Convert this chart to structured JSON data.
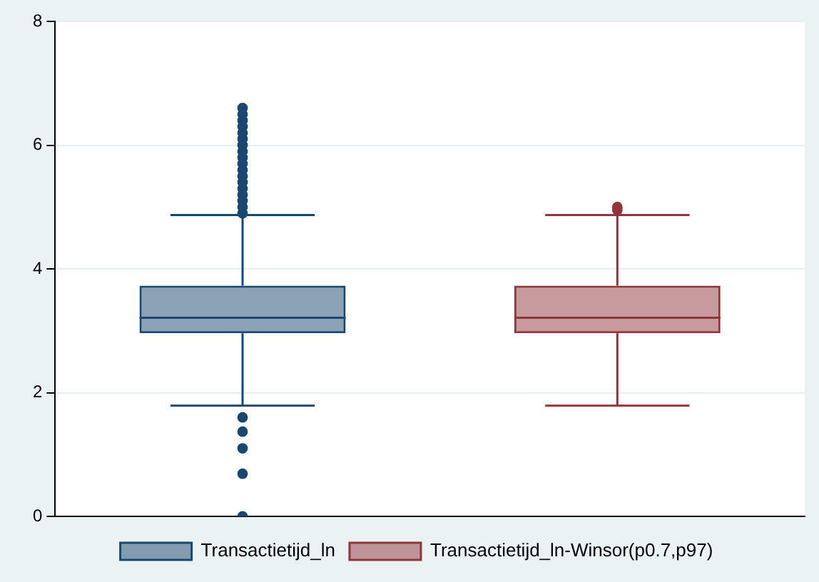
{
  "chart_data": {
    "type": "box",
    "categories": [
      null,
      null
    ],
    "ylim": [
      0,
      8
    ],
    "yticks": [
      0,
      2,
      4,
      6,
      8
    ],
    "grid": "y",
    "legend": "bottom",
    "tick_labels": "y",
    "series": [
      {
        "name": "Transactietijd_ln",
        "color": "#1a476f",
        "boxes": [
          {
            "low": 1.79,
            "q1": 2.96,
            "median": 3.21,
            "q3": 3.73,
            "high": 4.87,
            "outliers": [
              0,
              0.69,
              1.1,
              1.37,
              1.6,
              4.9,
              5.0,
              5.1,
              5.2,
              5.3,
              5.4,
              5.5,
              5.6,
              5.7,
              5.8,
              5.9,
              6.0,
              6.1,
              6.2,
              6.3,
              6.4,
              6.5,
              6.6
            ]
          },
          null
        ]
      },
      {
        "name": "Transactietijd_ln-Winsor(p0.7,p97)",
        "color": "#90353b",
        "boxes": [
          null,
          {
            "low": 1.79,
            "q1": 2.96,
            "median": 3.21,
            "q3": 3.73,
            "high": 4.87,
            "outliers": [
              4.95,
              5.0
            ]
          }
        ]
      }
    ]
  }
}
